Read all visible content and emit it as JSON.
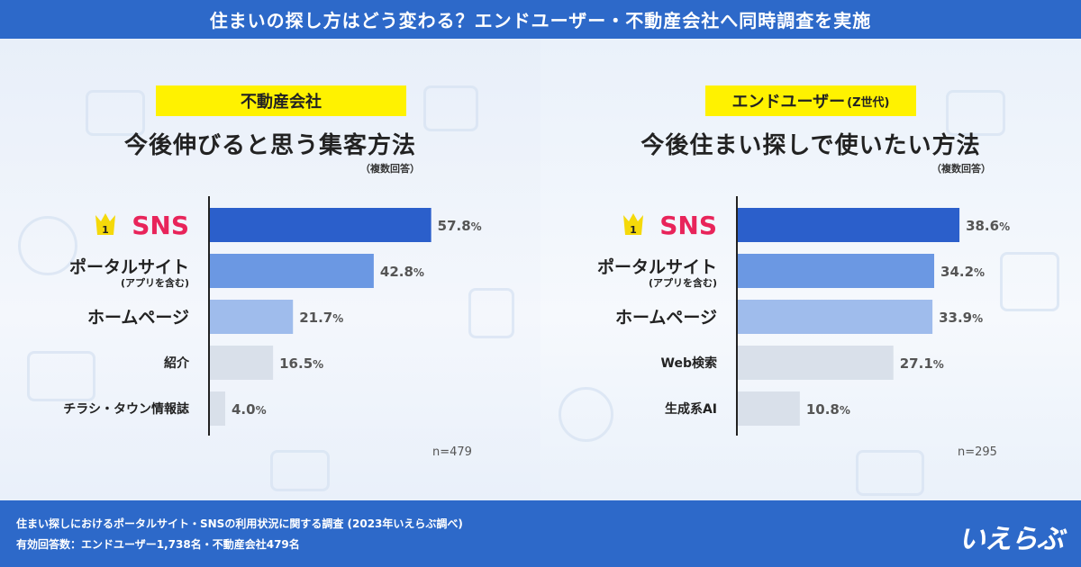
{
  "header": {
    "title": "住まいの探し方はどう変わる？エンドユーザー・不動産会社へ同時調査を実施"
  },
  "panels": [
    {
      "badge": "不動産会社",
      "badge_suffix": "",
      "title": "今後伸びると思う集客方法",
      "note": "（複数回答）",
      "n_label": "n=479"
    },
    {
      "badge": "エンドユーザー",
      "badge_suffix": "(Z世代)",
      "title": "今後住まい探しで使いたい方法",
      "note": "（複数回答）",
      "n_label": "n=295"
    }
  ],
  "rank_badge": "1",
  "footer": {
    "line1": "住まい探しにおけるポータルサイト・SNSの利用状況に関する調査 (2023年いえらぶ調べ)",
    "line2": "有効回答数：エンドユーザー1,738名・不動産会社479名",
    "logo": "いえらぶ"
  },
  "colors": {
    "rank1": "#2b5fcb",
    "rank2": "#6b98e3",
    "rank3": "#9fbcec",
    "rest": "#d9e0ea",
    "sns_text": "#e8245a",
    "header_bg": "#2d69c9",
    "badge_bg": "#fff200"
  },
  "chart_data": [
    {
      "type": "bar",
      "orientation": "horizontal",
      "title": "今後伸びると思う集客方法",
      "categories": [
        "SNS",
        "ポータルサイト",
        "ホームページ",
        "紹介",
        "チラシ・タウン情報誌"
      ],
      "category_sublabels": [
        "",
        "(アプリを含む)",
        "",
        "",
        ""
      ],
      "values": [
        57.8,
        42.8,
        21.7,
        16.5,
        4.0
      ],
      "value_labels": [
        "57.8",
        "42.8",
        "21.7",
        "16.5",
        "4.0"
      ],
      "unit": "%",
      "xlim": [
        0,
        60
      ],
      "grid": false
    },
    {
      "type": "bar",
      "orientation": "horizontal",
      "title": "今後住まい探しで使いたい方法",
      "categories": [
        "SNS",
        "ポータルサイト",
        "ホームページ",
        "Web検索",
        "生成系AI"
      ],
      "category_sublabels": [
        "",
        "(アプリを含む)",
        "",
        "",
        ""
      ],
      "values": [
        38.6,
        34.2,
        33.9,
        27.1,
        10.8
      ],
      "value_labels": [
        "38.6",
        "34.2",
        "33.9",
        "27.1",
        "10.8"
      ],
      "unit": "%",
      "xlim": [
        0,
        40
      ],
      "grid": false
    }
  ]
}
